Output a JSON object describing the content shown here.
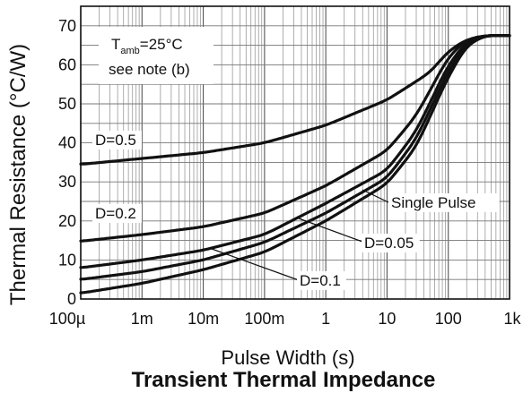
{
  "chart_data": {
    "type": "line",
    "title": "Transient Thermal Impedance",
    "xlabel": "Pulse Width (s)",
    "ylabel": "Thermal Resistance (°C/W)",
    "x_scale": "log",
    "xlim": [
      0.0001,
      1000
    ],
    "ylim": [
      0,
      75
    ],
    "x_ticks": [
      0.0001,
      0.001,
      0.01,
      0.1,
      1,
      10,
      100,
      1000
    ],
    "x_tick_labels": [
      "100µ",
      "1m",
      "10m",
      "100m",
      "1",
      "10",
      "100",
      "1k"
    ],
    "y_ticks": [
      0,
      10,
      20,
      30,
      40,
      50,
      60,
      70
    ],
    "y_tick_labels": [
      "0",
      "10",
      "20",
      "30",
      "40",
      "50",
      "60",
      "70"
    ],
    "grid": true,
    "note": {
      "line1_prefix": "T",
      "line1_sub": "amb",
      "line1_suffix": "=25°C",
      "line2": "see note (b)"
    },
    "series": [
      {
        "name": "D=0.5",
        "x": [
          0.0001,
          0.001,
          0.01,
          0.1,
          1,
          10,
          50,
          100,
          200,
          400,
          1000
        ],
        "y": [
          34.5,
          36,
          37.5,
          40,
          44.5,
          51,
          58,
          63.5,
          66.5,
          67.5,
          67.5
        ]
      },
      {
        "name": "D=0.2",
        "x": [
          0.0001,
          0.001,
          0.01,
          0.1,
          1,
          10,
          30,
          100,
          200,
          400,
          1000
        ],
        "y": [
          14.8,
          16.5,
          18.5,
          22,
          29,
          38,
          47,
          62,
          66.5,
          67.5,
          67.5
        ]
      },
      {
        "name": "D=0.1",
        "x": [
          0.0001,
          0.001,
          0.01,
          0.1,
          1,
          10,
          30,
          100,
          200,
          400,
          1000
        ],
        "y": [
          8,
          10,
          12.5,
          16.5,
          24.5,
          33,
          43,
          60,
          66,
          67.5,
          67.5
        ]
      },
      {
        "name": "D=0.05",
        "x": [
          0.0001,
          0.001,
          0.01,
          0.1,
          1,
          10,
          30,
          100,
          200,
          400,
          1000
        ],
        "y": [
          5,
          7,
          10,
          14.5,
          22,
          31,
          41,
          58.5,
          65.5,
          67.5,
          67.5
        ]
      },
      {
        "name": "Single Pulse",
        "x": [
          0.0001,
          0.001,
          0.01,
          0.1,
          1,
          10,
          30,
          100,
          200,
          400,
          1000
        ],
        "y": [
          1.5,
          4,
          7.5,
          12,
          20,
          29.5,
          39,
          57,
          65,
          67.5,
          67.5
        ]
      }
    ]
  }
}
